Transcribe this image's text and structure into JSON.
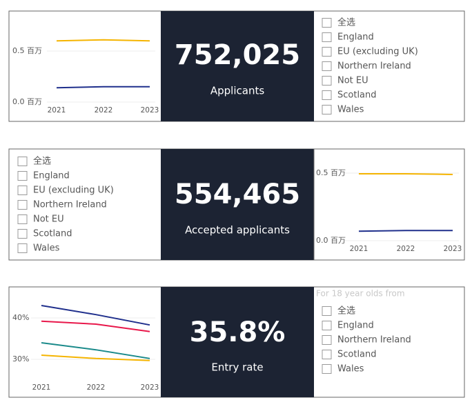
{
  "chart_data": [
    {
      "type": "line",
      "x": [
        "2021",
        "2022",
        "2023"
      ],
      "ylim": [
        0,
        0.65
      ],
      "yticks": [
        {
          "value": 0,
          "label": "0.0 百万"
        },
        {
          "value": 0.5,
          "label": "0.5 百万"
        }
      ],
      "grid": true,
      "series": [
        {
          "color": "#f5b400",
          "values": [
            0.6,
            0.61,
            0.6
          ]
        },
        {
          "color": "#1f2f8c",
          "values": [
            0.14,
            0.15,
            0.15
          ]
        }
      ]
    },
    {
      "type": "line",
      "x": [
        "2021",
        "2022",
        "2023"
      ],
      "ylim": [
        0,
        0.55
      ],
      "yticks": [
        {
          "value": 0,
          "label": "0.0 百万"
        },
        {
          "value": 0.5,
          "label": "0.5 百万"
        }
      ],
      "grid": true,
      "series": [
        {
          "color": "#f5b400",
          "values": [
            0.495,
            0.495,
            0.49
          ]
        },
        {
          "color": "#1f2f8c",
          "values": [
            0.07,
            0.075,
            0.075
          ]
        }
      ]
    },
    {
      "type": "line",
      "x": [
        "2021",
        "2022",
        "2023"
      ],
      "ylim": [
        25,
        44
      ],
      "yticks": [
        {
          "value": 30,
          "label": "30%"
        },
        {
          "value": 40,
          "label": "40%"
        }
      ],
      "grid": true,
      "series": [
        {
          "color": "#1f2f8c",
          "values": [
            43,
            40.8,
            38.3
          ]
        },
        {
          "color": "#e8174a",
          "values": [
            39.2,
            38.5,
            36.7
          ]
        },
        {
          "color": "#1a8a8a",
          "values": [
            34,
            32.3,
            30.2
          ]
        },
        {
          "color": "#f5b400",
          "values": [
            31,
            30.2,
            29.7
          ]
        }
      ]
    }
  ],
  "kpis": [
    {
      "value": "752,025",
      "label": "Applicants"
    },
    {
      "value": "554,465",
      "label": "Accepted applicants"
    },
    {
      "value": "35.8%",
      "label": "Entry rate"
    }
  ],
  "filters": [
    {
      "items": [
        "全选",
        "England",
        "EU (excluding UK)",
        "Northern Ireland",
        "Not EU",
        "Scotland",
        "Wales"
      ]
    },
    {
      "items": [
        "全选",
        "England",
        "EU (excluding UK)",
        "Northern Ireland",
        "Not EU",
        "Scotland",
        "Wales"
      ]
    },
    {
      "heading": "For 18 year olds from",
      "items": [
        "全选",
        "England",
        "Northern Ireland",
        "Scotland",
        "Wales"
      ]
    }
  ]
}
